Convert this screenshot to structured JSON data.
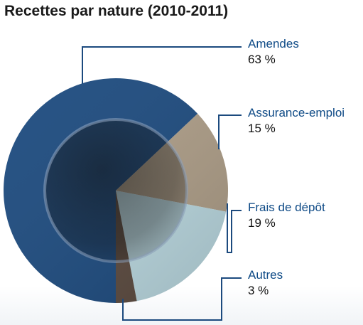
{
  "chart_data": {
    "type": "pie",
    "title": "Recettes par nature (2010-2011)",
    "slices": [
      {
        "label": "Amendes",
        "value": 63,
        "display": "63 %",
        "color": "#1c4a7e"
      },
      {
        "label": "Assurance-emploi",
        "value": 15,
        "display": "15 %",
        "color": "#ad9d87"
      },
      {
        "label": "Frais de dépôt",
        "value": 19,
        "display": "19 %",
        "color": "#b9d7df"
      },
      {
        "label": "Autres",
        "value": 3,
        "display": "3 %",
        "color": "#5b4a3f"
      }
    ],
    "legend": "callout labels on the right"
  }
}
